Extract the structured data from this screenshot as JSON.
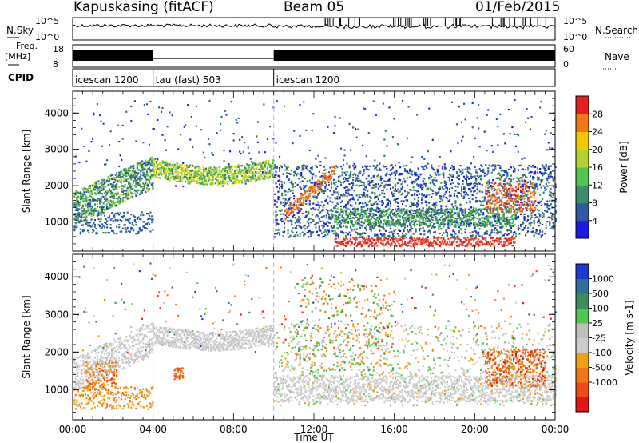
{
  "header": {
    "station": "Kapuskasing (fitACF)",
    "beam": "Beam 05",
    "date": "01/Feb/2015"
  },
  "status_panels": {
    "nsky_label": "N.Sky",
    "nsearch_label": "N.Search",
    "freq_label_1": "Freq.",
    "freq_label_2": "[MHz]",
    "nave_label": "Nave",
    "cpid_label": "CPID",
    "nsky_ticks": [
      "10^5",
      "10^0"
    ],
    "nsearch_ticks": [
      "10^5",
      "10^0"
    ],
    "freq_ticks": [
      "18",
      "8"
    ],
    "nave_ticks": [
      "60",
      "0"
    ]
  },
  "cpid_segments": [
    {
      "start_hr": 0,
      "end_hr": 4,
      "label": "icescan 1200"
    },
    {
      "start_hr": 4,
      "end_hr": 10,
      "label": "tau (fast) 503"
    },
    {
      "start_hr": 10,
      "end_hr": 24,
      "label": "icescan 1200"
    }
  ],
  "colors": {
    "power_scale": [
      "#1a1ae6",
      "#1f4bbd",
      "#2e6e6e",
      "#3c8c50",
      "#4ec84e",
      "#b4d232",
      "#f0d200",
      "#f5a014",
      "#f07814",
      "#eb4b23",
      "#e61e1e"
    ],
    "velocity_scale": [
      "#1a3ad2",
      "#2e6e9a",
      "#3c8c5a",
      "#50c850",
      "#bebebe",
      "#cccccc",
      "#f0a014",
      "#f07814",
      "#f04b14",
      "#e61414"
    ]
  },
  "chart_data": [
    {
      "type": "heatmap",
      "variable": "power",
      "xlabel": "",
      "ylabel": "Slant Range [km]",
      "xlim": [
        0,
        24
      ],
      "ylim": [
        200,
        4600
      ],
      "yticks": [
        "1000",
        "2000",
        "3000",
        "4000"
      ],
      "colorbar": {
        "label": "Power [dB]",
        "range": [
          0,
          32
        ],
        "ticks": [
          "4",
          "8",
          "12",
          "16",
          "20",
          "24",
          "28"
        ]
      }
    },
    {
      "type": "heatmap",
      "variable": "velocity",
      "xlabel": "Time UT",
      "ylabel": "Slant Range [km]",
      "xlim": [
        0,
        24
      ],
      "ylim": [
        200,
        4600
      ],
      "xticks": [
        "00:00",
        "04:00",
        "08:00",
        "12:00",
        "16:00",
        "20:00",
        "00:00"
      ],
      "yticks": [
        "1000",
        "2000",
        "3000",
        "4000"
      ],
      "colorbar": {
        "label": "Velocity [m s-1]",
        "ticks": [
          "1000",
          "500",
          "100",
          "25",
          "-25",
          "-100",
          "-500",
          "-1000"
        ]
      }
    }
  ]
}
